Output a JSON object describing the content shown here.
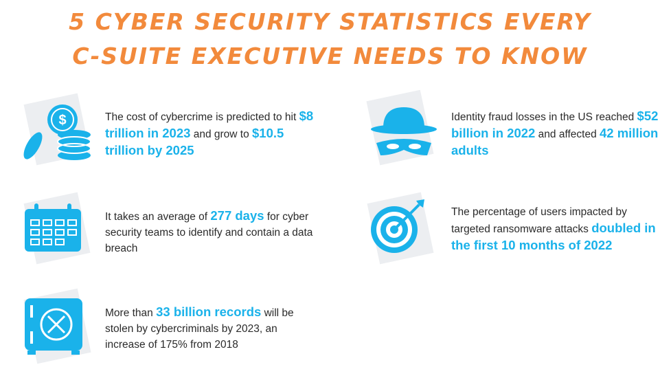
{
  "title": {
    "lines": [
      "5 Cyber Security Statistics Every",
      "C-Suite Executive Needs to Know"
    ]
  },
  "stats": [
    {
      "parts": [
        {
          "text": "The cost of cybercrime is predicted to hit ",
          "highlight": false
        },
        {
          "text": "$8 trillion in 2023",
          "highlight": true
        },
        {
          "text": " and grow to ",
          "highlight": false
        },
        {
          "text": "$10.5 trillion by 2025",
          "highlight": true
        }
      ]
    },
    {
      "parts": [
        {
          "text": "Identity fraud losses in the US reached ",
          "highlight": false
        },
        {
          "text": "$52 billion in 2022",
          "highlight": true
        },
        {
          "text": " and affected ",
          "highlight": false
        },
        {
          "text": "42 million adults",
          "highlight": true
        }
      ]
    },
    {
      "parts": [
        {
          "text": "It takes an average of ",
          "highlight": false
        },
        {
          "text": "277 days",
          "highlight": true
        },
        {
          "text": " for cyber security teams to identify and contain a data breach",
          "highlight": false
        }
      ]
    },
    {
      "parts": [
        {
          "text": "The percentage of users impacted by targeted ransomware attacks ",
          "highlight": false
        },
        {
          "text": "doubled in the first 10 months of 2022",
          "highlight": true
        }
      ]
    },
    {
      "parts": [
        {
          "text": "More than ",
          "highlight": false
        },
        {
          "text": "33 billion records",
          "highlight": true
        },
        {
          "text": " will be stolen by cybercriminals by 2023, an increase of 175% from 2018",
          "highlight": false
        }
      ]
    }
  ]
}
